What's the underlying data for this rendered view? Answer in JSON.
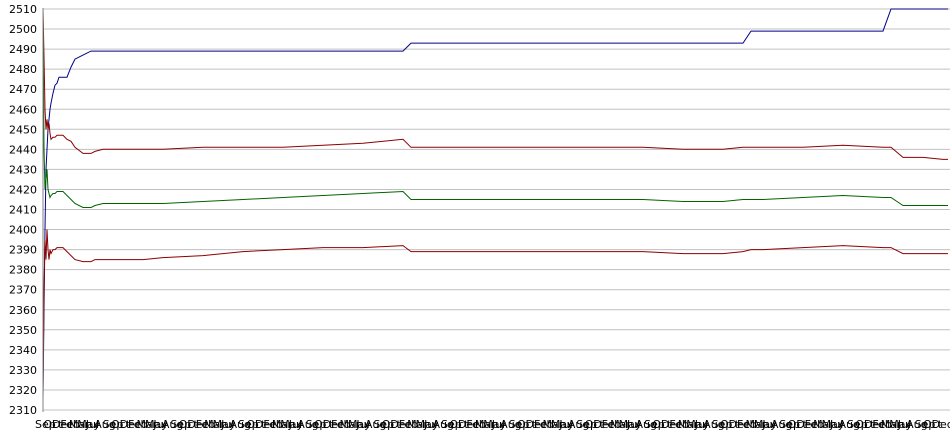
{
  "chart_data": {
    "type": "line",
    "title": "",
    "xlabel": "",
    "ylabel": "",
    "ylim": [
      2310,
      2510
    ],
    "yticks": [
      2310,
      2320,
      2330,
      2340,
      2350,
      2360,
      2370,
      2380,
      2390,
      2400,
      2410,
      2420,
      2430,
      2440,
      2450,
      2460,
      2470,
      2480,
      2490,
      2500,
      2510
    ],
    "grid": true,
    "legend": "none",
    "x": [
      0,
      1,
      2,
      3,
      4,
      5,
      6,
      7,
      8,
      10,
      12,
      14,
      16,
      20,
      24,
      28,
      32,
      40,
      48,
      52,
      60,
      80,
      100,
      120,
      160,
      200,
      240,
      280,
      320,
      360,
      368,
      380,
      400,
      440,
      480,
      520,
      560,
      600,
      640,
      680,
      700,
      708,
      720,
      760,
      800,
      840,
      848,
      860,
      880,
      900,
      905
    ],
    "xtick_labels": [
      "Sep",
      "Oct",
      "Dec",
      "Feb",
      "Mar",
      "May",
      "Jul",
      "Aug",
      "Sep",
      "Oct",
      "Dec",
      "Feb",
      "Mar",
      "May",
      "Jul",
      "Aug",
      "Sep",
      "Oct",
      "Dec",
      "Feb",
      "Mar",
      "May",
      "Jul",
      "Aug",
      "Sep",
      "Oct",
      "Dec",
      "Feb",
      "Mar",
      "May",
      "Jul",
      "Aug",
      "Sep",
      "Oct",
      "Dec",
      "Feb",
      "Mar",
      "May",
      "Jul",
      "Aug",
      "Sep",
      "Oct",
      "Dec",
      "Feb",
      "Mar",
      "May",
      "Jul",
      "Aug",
      "Sep",
      "Oct",
      "Dec",
      "Feb",
      "Mar",
      "May",
      "Jul",
      "Aug",
      "Sep",
      "Oct",
      "Dec",
      "Feb",
      "Mar",
      "May",
      "Jul",
      "Aug",
      "Sep",
      "Oct",
      "Dec",
      "Feb",
      "Mar",
      "May",
      "Jul",
      "Aug",
      "Sep",
      "Oct",
      "Dec",
      "Feb",
      "Mar",
      "May",
      "Jul",
      "Aug",
      "Sep",
      "Oct",
      "Dec",
      "Feb",
      "Mar",
      "May",
      "Jul",
      "Aug",
      "Sep",
      "Oct",
      "Dec",
      "Feb",
      "Mar",
      "May",
      "Jul",
      "Aug",
      "Sep",
      "Oct",
      "Dec",
      "Feb",
      "Mar",
      "May",
      "Jul",
      "Aug",
      "Sep",
      "Oct",
      "Dec"
    ],
    "series": [
      {
        "color": "#00008b",
        "values": [
          2315,
          2360,
          2400,
          2430,
          2440,
          2450,
          2455,
          2460,
          2463,
          2468,
          2472,
          2473,
          2476,
          2476,
          2476,
          2481,
          2485,
          2487,
          2489,
          2489,
          2489,
          2489,
          2489,
          2489,
          2489,
          2489,
          2489,
          2489,
          2489,
          2489,
          2493,
          2493,
          2493,
          2493,
          2493,
          2493,
          2493,
          2493,
          2493,
          2493,
          2493,
          2499,
          2499,
          2499,
          2499,
          2499,
          2510,
          2510,
          2510,
          2510,
          2510
        ]
      },
      {
        "color": "#8b0000",
        "values": [
          2510,
          2486,
          2460,
          2450,
          2455,
          2450,
          2453,
          2448,
          2445,
          2446,
          2446,
          2447,
          2447,
          2447,
          2445,
          2444,
          2441,
          2438,
          2438,
          2439,
          2440,
          2440,
          2440,
          2440,
          2441,
          2441,
          2441,
          2442,
          2443,
          2445,
          2441,
          2441,
          2441,
          2441,
          2441,
          2441,
          2441,
          2441,
          2440,
          2440,
          2441,
          2441,
          2441,
          2441,
          2442,
          2441,
          2441,
          2436,
          2436,
          2435,
          2435
        ]
      },
      {
        "color": "#006400",
        "values": [
          2510,
          2440,
          2420,
          2425,
          2430,
          2420,
          2418,
          2416,
          2417,
          2418,
          2418,
          2419,
          2419,
          2419,
          2417,
          2415,
          2413,
          2411,
          2411,
          2412,
          2413,
          2413,
          2413,
          2413,
          2414,
          2415,
          2416,
          2417,
          2418,
          2419,
          2415,
          2415,
          2415,
          2415,
          2415,
          2415,
          2415,
          2415,
          2414,
          2414,
          2415,
          2415,
          2415,
          2416,
          2417,
          2416,
          2416,
          2412,
          2412,
          2412,
          2412
        ]
      },
      {
        "color": "#8b0000",
        "values": [
          2320,
          2370,
          2395,
          2385,
          2400,
          2390,
          2385,
          2390,
          2388,
          2390,
          2390,
          2391,
          2391,
          2391,
          2389,
          2387,
          2385,
          2384,
          2384,
          2385,
          2385,
          2385,
          2385,
          2386,
          2387,
          2389,
          2390,
          2391,
          2391,
          2392,
          2389,
          2389,
          2389,
          2389,
          2389,
          2389,
          2389,
          2389,
          2388,
          2388,
          2389,
          2390,
          2390,
          2391,
          2392,
          2391,
          2391,
          2388,
          2388,
          2388,
          2388
        ]
      }
    ]
  }
}
